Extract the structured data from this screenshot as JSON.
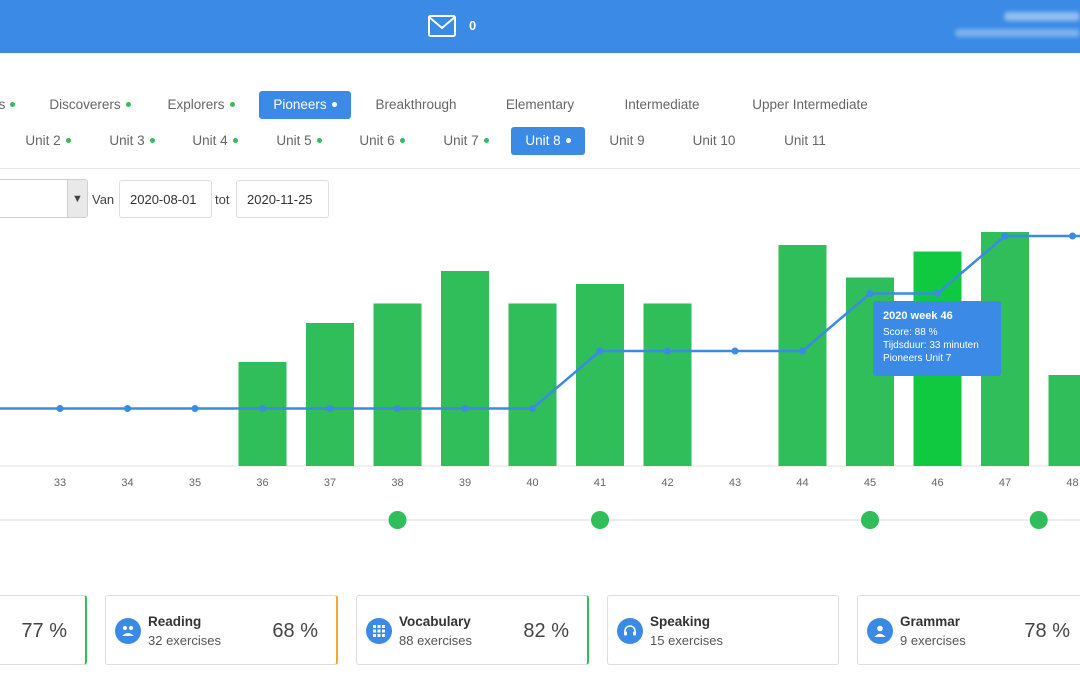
{
  "header": {
    "mail_count": "0"
  },
  "levels": [
    {
      "label": "s",
      "dot": true,
      "active": false
    },
    {
      "label": "Discoverers",
      "dot": true,
      "active": false
    },
    {
      "label": "Explorers",
      "dot": true,
      "active": false
    },
    {
      "label": "Pioneers",
      "dot": true,
      "active": true
    },
    {
      "label": "Breakthrough",
      "dot": false,
      "active": false
    },
    {
      "label": "Elementary",
      "dot": false,
      "active": false
    },
    {
      "label": "Intermediate",
      "dot": false,
      "active": false
    },
    {
      "label": "Upper Intermediate",
      "dot": false,
      "active": false
    }
  ],
  "units": [
    {
      "label": "Unit 2",
      "dot": true,
      "active": false
    },
    {
      "label": "Unit 3",
      "dot": true,
      "active": false
    },
    {
      "label": "Unit 4",
      "dot": true,
      "active": false
    },
    {
      "label": "Unit 5",
      "dot": true,
      "active": false
    },
    {
      "label": "Unit 6",
      "dot": true,
      "active": false
    },
    {
      "label": "Unit 7",
      "dot": true,
      "active": false
    },
    {
      "label": "Unit 8",
      "dot": true,
      "active": true
    },
    {
      "label": "Unit 9",
      "dot": false,
      "active": false
    },
    {
      "label": "Unit 10",
      "dot": false,
      "active": false
    },
    {
      "label": "Unit 11",
      "dot": false,
      "active": false
    }
  ],
  "filters": {
    "from_label": "Van",
    "from_value": "2020-08-01",
    "to_label": "tot",
    "to_value": "2020-11-25"
  },
  "chart_data": {
    "type": "bar",
    "categories": [
      "33",
      "34",
      "35",
      "36",
      "37",
      "38",
      "39",
      "40",
      "41",
      "42",
      "43",
      "44",
      "45",
      "46",
      "47",
      "48"
    ],
    "series": [
      {
        "kind": "bar",
        "values": [
          0,
          0,
          0,
          16,
          22,
          25,
          30,
          25,
          28,
          25,
          0,
          34,
          29,
          33,
          36,
          14
        ]
      },
      {
        "kind": "line",
        "values": [
          10,
          10,
          10,
          10,
          10,
          10,
          10,
          10,
          20,
          20,
          20,
          20,
          30,
          30,
          40,
          40
        ]
      }
    ],
    "highlight_index": 13,
    "milestones_at": [
      "38",
      "41",
      "45",
      "47.5"
    ],
    "colors": {
      "bar": "#2fbe5a",
      "bar_highlight": "#10c940",
      "line": "#3a8ae6",
      "milestone": "#2fbe5a"
    },
    "grid": false
  },
  "tooltip": {
    "title": "2020 week 46",
    "line1": "Score: 88 %",
    "line2": "Tijdsduur: 33 minuten",
    "line3": "Pioneers Unit 7"
  },
  "cards": [
    {
      "title": "",
      "sub": "",
      "pct": "77 %",
      "accent": "#2fbe5a",
      "icon": ""
    },
    {
      "title": "Reading",
      "sub": "32 exercises",
      "pct": "68 %",
      "accent": "#f0a830",
      "icon": "reading-icon"
    },
    {
      "title": "Vocabulary",
      "sub": "88 exercises",
      "pct": "82 %",
      "accent": "#2fbe5a",
      "icon": "vocabulary-icon"
    },
    {
      "title": "Speaking",
      "sub": "15 exercises",
      "pct": "",
      "accent": "#dcdcdc",
      "icon": "headset-icon"
    },
    {
      "title": "Grammar",
      "sub": "9 exercises",
      "pct": "78 %",
      "accent": "#dcdcdc",
      "icon": "user-icon"
    }
  ]
}
